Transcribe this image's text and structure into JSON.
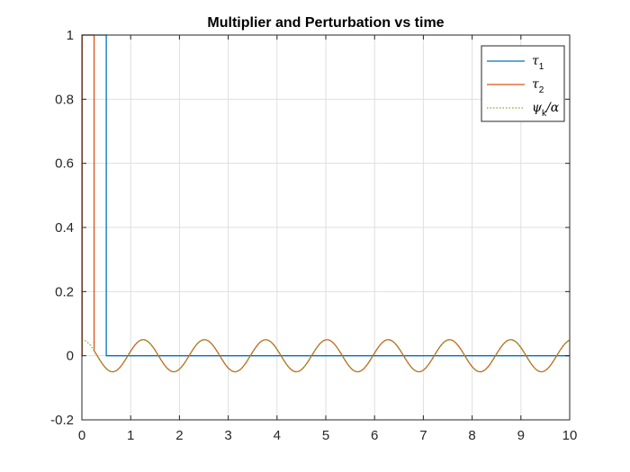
{
  "chart_data": {
    "type": "line",
    "title": "Multiplier and Perturbation vs time",
    "xlabel": "",
    "ylabel": "",
    "xlim": [
      0,
      10
    ],
    "ylim": [
      -0.2,
      1
    ],
    "xticks": [
      0,
      1,
      2,
      3,
      4,
      5,
      6,
      7,
      8,
      9,
      10
    ],
    "yticks": [
      -0.2,
      0,
      0.2,
      0.4,
      0.6,
      0.8,
      1
    ],
    "xtick_labels": [
      "0",
      "1",
      "2",
      "3",
      "4",
      "5",
      "6",
      "7",
      "8",
      "9",
      "10"
    ],
    "ytick_labels": [
      "-0.2",
      "0",
      "0.2",
      "0.4",
      "0.6",
      "0.8",
      "1"
    ],
    "grid": true,
    "legend_position": "top-right",
    "series": [
      {
        "name": "tau_1",
        "legend_symbol": "τ",
        "legend_sub": "1",
        "legend_tail": "",
        "color": "#0072BD",
        "style": "solid",
        "kind": "step",
        "x": [
          0,
          0.005,
          0.005,
          0.5,
          0.5,
          10
        ],
        "y": [
          0,
          0,
          1,
          1,
          0,
          0
        ]
      },
      {
        "name": "tau_2",
        "legend_symbol": "τ",
        "legend_sub": "2",
        "legend_tail": "",
        "color": "#D95319",
        "style": "solid",
        "kind": "step_then_sine",
        "x": [
          0,
          0.005,
          0.005,
          0.25,
          0.25
        ],
        "y": [
          0,
          0,
          1,
          1,
          0.05
        ],
        "sine_amplitude": 0.05,
        "sine_period": 1.256,
        "sine_phase_offset": 0.314,
        "sine_start": 0.25
      },
      {
        "name": "psi_k_over_alpha",
        "legend_symbol": "ψ",
        "legend_sub": "k",
        "legend_tail": "/α",
        "color": "#77AC30",
        "style": "dotted",
        "kind": "sine",
        "sine_amplitude": 0.05,
        "sine_period": 1.256,
        "sine_phase_offset": 0.314,
        "sine_start": 0
      }
    ]
  }
}
